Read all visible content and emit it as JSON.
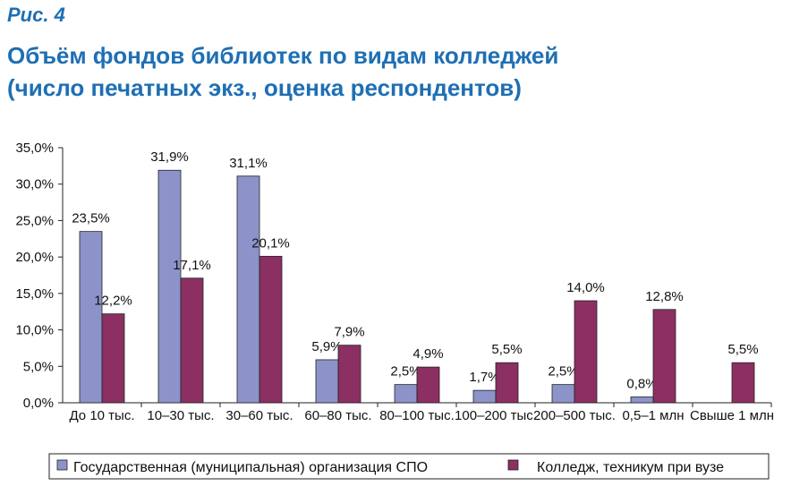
{
  "figure_label": "Рис. 4",
  "title_line1": "Объём фондов библиотек по видам колледжей",
  "title_line2": "(число печатных экз., оценка респондентов)",
  "colors": {
    "title": "#1e6fb4",
    "series1": "#8b93c9",
    "series2": "#8c2f62"
  },
  "chart_data": {
    "type": "bar",
    "title": "Объём фондов библиотек по видам колледжей (число печатных экз., оценка респондентов)",
    "categories": [
      "До 10 тыс.",
      "10–30 тыс.",
      "30–60 тыс.",
      "60–80 тыс.",
      "80–100 тыс.",
      "100–200 тыс.",
      "200–500 тыс.",
      "0,5–1 млн",
      "Свыше 1 млн"
    ],
    "series": [
      {
        "name": "Государственная (муниципальная) организация СПО",
        "values": [
          23.5,
          31.9,
          31.1,
          5.9,
          2.5,
          1.7,
          2.5,
          0.8,
          null
        ],
        "labels": [
          "23,5%",
          "31,9%",
          "31,1%",
          "5,9%",
          "2,5%",
          "1,7%",
          "2,5%",
          "0,8%",
          ""
        ]
      },
      {
        "name": "Колледж, техникум при вузе",
        "values": [
          12.2,
          17.1,
          20.1,
          7.9,
          4.9,
          5.5,
          14.0,
          12.8,
          5.5
        ],
        "labels": [
          "12,2%",
          "17,1%",
          "20,1%",
          "7,9%",
          "4,9%",
          "5,5%",
          "14,0%",
          "12,8%",
          "5,5%"
        ]
      }
    ],
    "yticks": [
      "0,0%",
      "5,0%",
      "10,0%",
      "15,0%",
      "20,0%",
      "25,0%",
      "30,0%",
      "35,0%"
    ],
    "ylim": [
      0,
      35
    ],
    "xlabel": "",
    "ylabel": "",
    "legend_position": "bottom"
  }
}
